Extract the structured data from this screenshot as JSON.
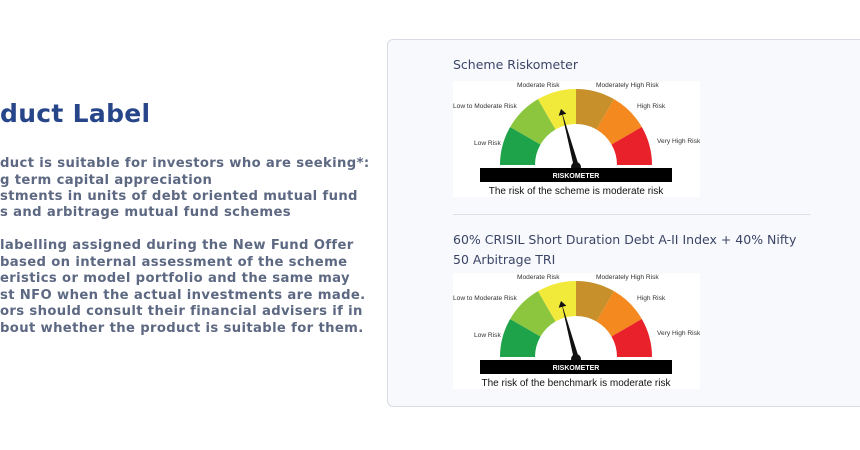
{
  "left": {
    "title": "duct Label",
    "lines": [
      "duct is suitable for investors who are seeking*:",
      "g term capital appreciation",
      "stments in units of debt oriented mutual fund",
      "s and arbitrage mutual fund schemes",
      " labelling assigned during the New Fund Offer",
      " based on internal assessment of the scheme",
      "eristics or model portfolio and the same may",
      "st NFO when the actual investments are made.",
      "ors should consult their financial advisers if in",
      "bout whether the product is suitable for them."
    ]
  },
  "card": {
    "scheme": {
      "title": "Scheme Riskometer",
      "caption": "The risk of the scheme is moderate risk",
      "level": "Moderate Risk"
    },
    "benchmark": {
      "title": "60% CRISIL Short Duration Debt A-II Index + 40% Nifty 50 Arbitrage TRI",
      "caption": "The risk of the benchmark is moderate risk",
      "level": "Moderate Risk"
    },
    "riskometer": {
      "bar_label": "RISKOMETER",
      "levels": [
        "Low Risk",
        "Low to Moderate Risk",
        "Moderate Risk",
        "Moderately High Risk",
        "High Risk",
        "Very High Risk"
      ],
      "colors": [
        "#1ea34a",
        "#8cc63f",
        "#f2ea3a",
        "#c8902a",
        "#f4891f",
        "#e8212a"
      ]
    }
  }
}
